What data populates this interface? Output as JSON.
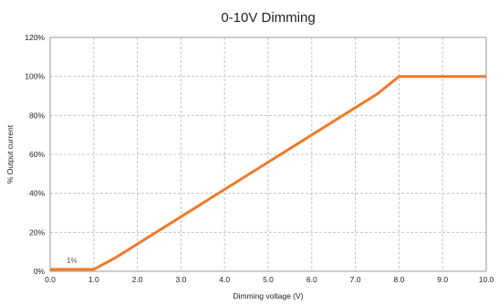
{
  "chart_data": {
    "type": "line",
    "title": "0-10V Dimming",
    "xlabel": "Dimming voltage (V)",
    "ylabel": "% Output current",
    "xlim": [
      0,
      10
    ],
    "ylim": [
      0,
      120
    ],
    "x_ticks": [
      "0.0",
      "1.0",
      "2.0",
      "3.0",
      "4.0",
      "5.0",
      "6.0",
      "7.0",
      "8.0",
      "9.0",
      "10.0"
    ],
    "y_ticks": [
      "0%",
      "20%",
      "40%",
      "60%",
      "80%",
      "100%",
      "120%"
    ],
    "grid": true,
    "grid_style": "dashed",
    "legend": "none",
    "series": [
      {
        "color": "#f07a2a",
        "x": [
          0.0,
          1.0,
          1.5,
          2.0,
          3.0,
          4.0,
          5.0,
          6.0,
          7.0,
          7.5,
          8.0,
          9.0,
          10.0
        ],
        "y": [
          1,
          1,
          7,
          14,
          28,
          42,
          56,
          70,
          84,
          91,
          100,
          100,
          100
        ]
      }
    ],
    "annotations": [
      {
        "text": "1%",
        "x": 0.5,
        "y": 1
      }
    ]
  }
}
